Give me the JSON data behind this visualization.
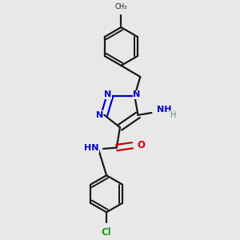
{
  "bg_color": "#e8e8e8",
  "bond_color": "#1a1a1a",
  "N_color": "#0000cc",
  "O_color": "#cc0000",
  "Cl_color": "#1a9a1a",
  "H_color": "#5a8a8a",
  "bond_width": 1.6,
  "dpi": 100,
  "figsize": [
    3.0,
    3.0
  ],
  "xlim": [
    0,
    10
  ],
  "ylim": [
    0,
    10
  ]
}
